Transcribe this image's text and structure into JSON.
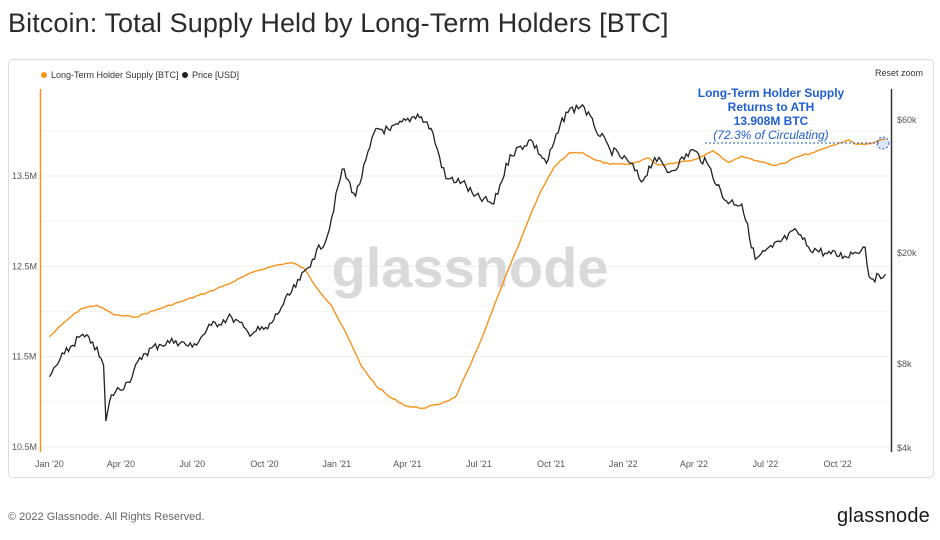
{
  "header": {
    "title": "Bitcoin: Total Supply Held by Long-Term Holders [BTC]"
  },
  "toolbar": {
    "reset_zoom": "Reset zoom"
  },
  "watermark": "glassnode",
  "footer": {
    "copyright": "© 2022 Glassnode. All Rights Reserved.",
    "brand": "glassnode"
  },
  "chart_data": {
    "type": "line",
    "title": "Bitcoin: Total Supply Held by Long-Term Holders [BTC]",
    "legend_position": "top-left",
    "grid": true,
    "x_ticks": [
      "Jan '20",
      "Apr '20",
      "Jul '20",
      "Oct '20",
      "Jan '21",
      "Apr '21",
      "Jul '21",
      "Oct '21",
      "Jan '22",
      "Apr '22",
      "Jul '22",
      "Oct '22"
    ],
    "y_left": {
      "ticks": [
        "10.5M",
        "11.5M",
        "12.5M",
        "13.5M"
      ],
      "range": [
        10.5,
        14.2
      ],
      "unit": "M BTC"
    },
    "y_right": {
      "ticks": [
        "$4k",
        "$8k",
        "$20k",
        "$60k"
      ],
      "scale": "log",
      "range": [
        4000,
        90000
      ]
    },
    "colors": {
      "supply": "#f7931a",
      "price": "#222222",
      "annotation": "#1f5fd1"
    },
    "annotation": {
      "line1": "Long-Term Holder Supply",
      "line2": "Returns to ATH",
      "line3": "13.908M BTC",
      "line4": "(72.3% of Circulating)"
    },
    "series": [
      {
        "name": "Long-Term Holder Supply [BTC]",
        "axis": "left",
        "points": [
          [
            "2020-01-01",
            11.72
          ],
          [
            "2020-01-20",
            11.88
          ],
          [
            "2020-02-10",
            12.03
          ],
          [
            "2020-03-01",
            12.07
          ],
          [
            "2020-03-25",
            11.96
          ],
          [
            "2020-04-20",
            11.94
          ],
          [
            "2020-05-20",
            12.03
          ],
          [
            "2020-06-20",
            12.12
          ],
          [
            "2020-07-20",
            12.21
          ],
          [
            "2020-08-20",
            12.32
          ],
          [
            "2020-09-20",
            12.45
          ],
          [
            "2020-10-20",
            12.52
          ],
          [
            "2020-11-05",
            12.54
          ],
          [
            "2020-11-20",
            12.48
          ],
          [
            "2020-12-05",
            12.28
          ],
          [
            "2020-12-25",
            12.07
          ],
          [
            "2021-01-15",
            11.72
          ],
          [
            "2021-02-01",
            11.4
          ],
          [
            "2021-02-20",
            11.18
          ],
          [
            "2021-03-10",
            11.05
          ],
          [
            "2021-04-01",
            10.95
          ],
          [
            "2021-04-20",
            10.93
          ],
          [
            "2021-05-10",
            10.97
          ],
          [
            "2021-06-01",
            11.05
          ],
          [
            "2021-06-20",
            11.4
          ],
          [
            "2021-07-10",
            11.82
          ],
          [
            "2021-08-01",
            12.32
          ],
          [
            "2021-08-25",
            12.83
          ],
          [
            "2021-09-15",
            13.28
          ],
          [
            "2021-10-05",
            13.6
          ],
          [
            "2021-10-25",
            13.76
          ],
          [
            "2021-11-10",
            13.76
          ],
          [
            "2021-11-25",
            13.68
          ],
          [
            "2021-12-15",
            13.63
          ],
          [
            "2022-01-10",
            13.63
          ],
          [
            "2022-02-01",
            13.7
          ],
          [
            "2022-02-15",
            13.62
          ],
          [
            "2022-03-10",
            13.65
          ],
          [
            "2022-04-01",
            13.68
          ],
          [
            "2022-04-25",
            13.78
          ],
          [
            "2022-05-15",
            13.65
          ],
          [
            "2022-06-01",
            13.72
          ],
          [
            "2022-06-20",
            13.67
          ],
          [
            "2022-07-10",
            13.62
          ],
          [
            "2022-07-25",
            13.64
          ],
          [
            "2022-08-10",
            13.71
          ],
          [
            "2022-09-01",
            13.76
          ],
          [
            "2022-09-25",
            13.84
          ],
          [
            "2022-10-15",
            13.9
          ],
          [
            "2022-10-25",
            13.85
          ],
          [
            "2022-11-05",
            13.85
          ],
          [
            "2022-11-20",
            13.88
          ],
          [
            "2022-12-01",
            13.908
          ]
        ]
      },
      {
        "name": "Price [USD]",
        "axis": "right",
        "points": [
          [
            "2020-01-01",
            7200
          ],
          [
            "2020-01-20",
            8700
          ],
          [
            "2020-02-10",
            10100
          ],
          [
            "2020-02-25",
            9600
          ],
          [
            "2020-03-10",
            7900
          ],
          [
            "2020-03-13",
            5000
          ],
          [
            "2020-03-20",
            6200
          ],
          [
            "2020-04-10",
            6900
          ],
          [
            "2020-04-30",
            8700
          ],
          [
            "2020-05-20",
            9400
          ],
          [
            "2020-06-10",
            9700
          ],
          [
            "2020-07-01",
            9200
          ],
          [
            "2020-07-25",
            11000
          ],
          [
            "2020-08-20",
            11800
          ],
          [
            "2020-09-10",
            10400
          ],
          [
            "2020-10-05",
            10700
          ],
          [
            "2020-10-25",
            13100
          ],
          [
            "2020-11-15",
            16000
          ],
          [
            "2020-12-01",
            19000
          ],
          [
            "2020-12-20",
            23000
          ],
          [
            "2021-01-08",
            40000
          ],
          [
            "2021-01-25",
            32000
          ],
          [
            "2021-02-20",
            56000
          ],
          [
            "2021-03-10",
            55000
          ],
          [
            "2021-04-14",
            63000
          ],
          [
            "2021-05-01",
            56000
          ],
          [
            "2021-05-20",
            37000
          ],
          [
            "2021-06-10",
            36000
          ],
          [
            "2021-06-25",
            32000
          ],
          [
            "2021-07-20",
            30000
          ],
          [
            "2021-08-10",
            45000
          ],
          [
            "2021-09-05",
            51000
          ],
          [
            "2021-09-25",
            42000
          ],
          [
            "2021-10-20",
            64000
          ],
          [
            "2021-11-10",
            68000
          ],
          [
            "2021-11-25",
            57000
          ],
          [
            "2021-12-15",
            47000
          ],
          [
            "2022-01-10",
            42000
          ],
          [
            "2022-01-24",
            36000
          ],
          [
            "2022-02-10",
            44000
          ],
          [
            "2022-03-01",
            39000
          ],
          [
            "2022-03-30",
            47000
          ],
          [
            "2022-04-20",
            41000
          ],
          [
            "2022-05-10",
            31000
          ],
          [
            "2022-06-01",
            30000
          ],
          [
            "2022-06-18",
            19000
          ],
          [
            "2022-07-10",
            21000
          ],
          [
            "2022-08-10",
            24000
          ],
          [
            "2022-08-25",
            21000
          ],
          [
            "2022-09-15",
            20000
          ],
          [
            "2022-10-10",
            19500
          ],
          [
            "2022-11-05",
            21000
          ],
          [
            "2022-11-10",
            16500
          ],
          [
            "2022-11-25",
            16200
          ],
          [
            "2022-12-01",
            16800
          ]
        ]
      }
    ]
  }
}
